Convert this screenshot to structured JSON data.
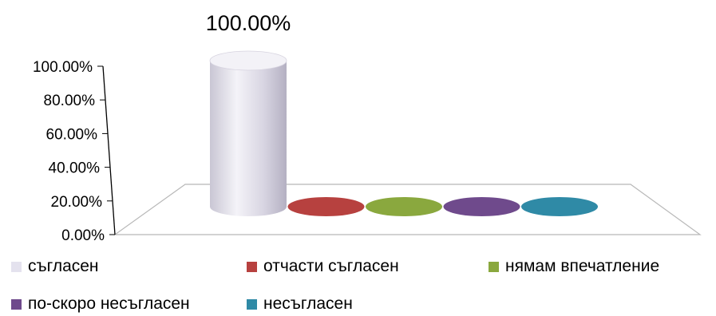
{
  "chart_data": {
    "type": "bar",
    "style": "3d-cylinder",
    "title": "",
    "xlabel": "",
    "ylabel": "",
    "ylim": [
      0,
      100
    ],
    "y_ticks": [
      "0.00%",
      "20.00%",
      "40.00%",
      "60.00%",
      "80.00%",
      "100.00%"
    ],
    "grid": false,
    "legend_position": "bottom",
    "series": [
      {
        "name": "съгласен",
        "value": 100,
        "label": "100.00%",
        "color": "#e4e2ee"
      },
      {
        "name": "отчасти съгласен",
        "value": 0,
        "label": "",
        "color": "#b7413f"
      },
      {
        "name": "нямам впечатление",
        "value": 0,
        "label": "",
        "color": "#8aa83e"
      },
      {
        "name": "по-скоро несъгласен",
        "value": 0,
        "label": "",
        "color": "#6f4a8c"
      },
      {
        "name": "несъгласен",
        "value": 0,
        "label": "",
        "color": "#2f8aa6"
      }
    ]
  }
}
